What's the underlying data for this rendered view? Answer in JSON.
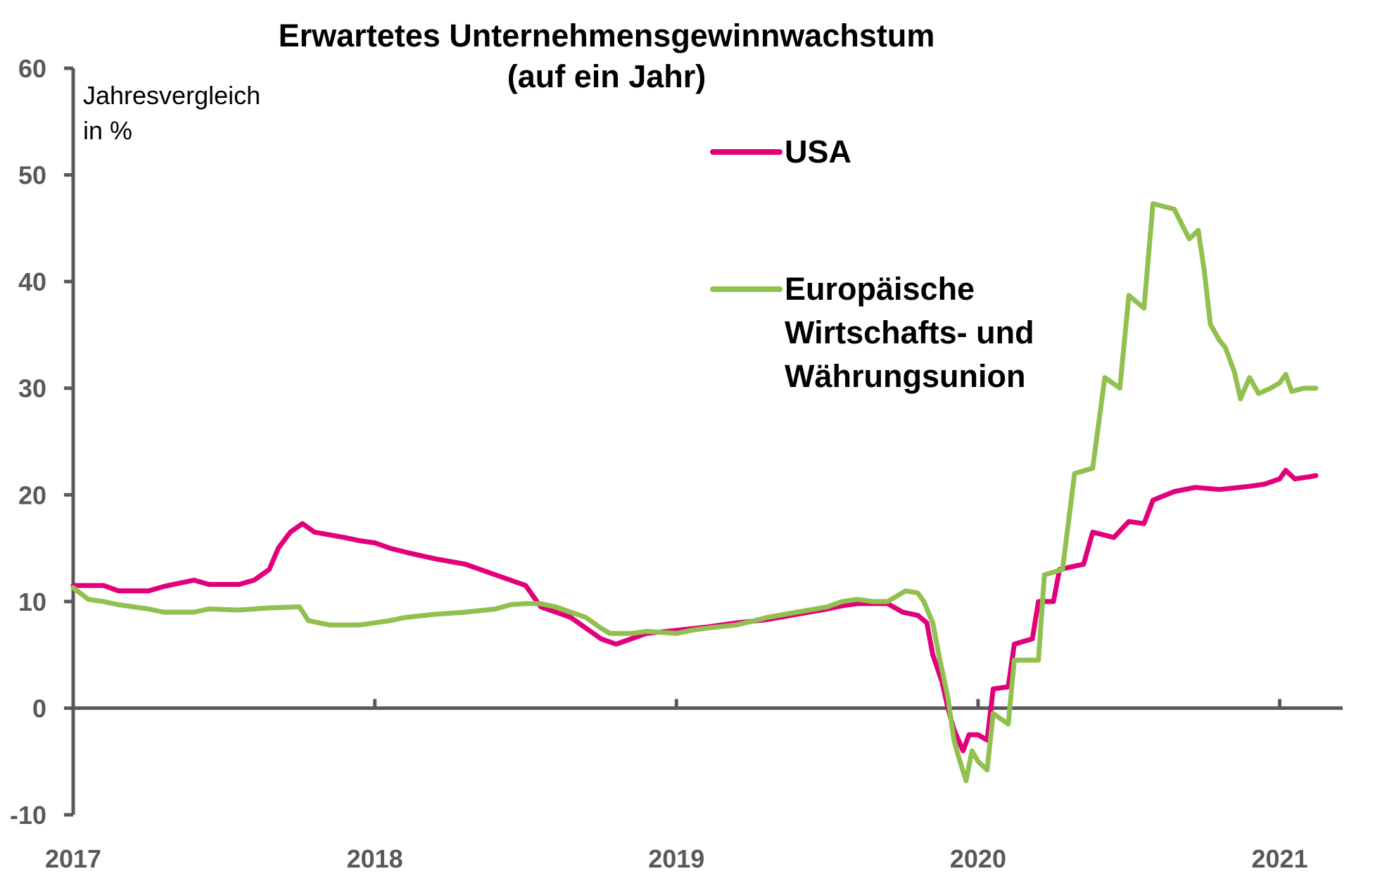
{
  "chart_data": {
    "type": "line",
    "title": [
      "Erwartetes Unternehmensgewinnwachstum",
      "(auf ein Jahr)"
    ],
    "ylabel": [
      "Jahresvergleich",
      "in %"
    ],
    "xlabel": "",
    "ylim": [
      -10,
      60
    ],
    "yticks": [
      60,
      50,
      40,
      30,
      20,
      10,
      0,
      -10
    ],
    "xlim": [
      2017,
      2021.12
    ],
    "xticks": [
      {
        "value": 2017,
        "label": "2017"
      },
      {
        "value": 2018,
        "label": "2018"
      },
      {
        "value": 2019,
        "label": "2019"
      },
      {
        "value": 2020,
        "label": "2020"
      },
      {
        "value": 2021,
        "label": "2021"
      }
    ],
    "grid": false,
    "legend_placement": "top-right",
    "series": [
      {
        "name": "USA",
        "color": "#E2007A",
        "points": [
          [
            2017.0,
            11.5
          ],
          [
            2017.05,
            11.5
          ],
          [
            2017.1,
            11.5
          ],
          [
            2017.15,
            11.0
          ],
          [
            2017.25,
            11.0
          ],
          [
            2017.3,
            11.4
          ],
          [
            2017.4,
            12.0
          ],
          [
            2017.45,
            11.6
          ],
          [
            2017.55,
            11.6
          ],
          [
            2017.6,
            12.0
          ],
          [
            2017.65,
            13.0
          ],
          [
            2017.68,
            15.0
          ],
          [
            2017.72,
            16.5
          ],
          [
            2017.76,
            17.3
          ],
          [
            2017.8,
            16.5
          ],
          [
            2017.9,
            16.0
          ],
          [
            2017.95,
            15.7
          ],
          [
            2018.0,
            15.5
          ],
          [
            2018.05,
            15.0
          ],
          [
            2018.12,
            14.5
          ],
          [
            2018.2,
            14.0
          ],
          [
            2018.3,
            13.5
          ],
          [
            2018.4,
            12.5
          ],
          [
            2018.45,
            12.0
          ],
          [
            2018.5,
            11.5
          ],
          [
            2018.55,
            9.5
          ],
          [
            2018.6,
            9.0
          ],
          [
            2018.65,
            8.5
          ],
          [
            2018.7,
            7.5
          ],
          [
            2018.75,
            6.5
          ],
          [
            2018.8,
            6.0
          ],
          [
            2018.85,
            6.5
          ],
          [
            2018.9,
            7.0
          ],
          [
            2019.0,
            7.3
          ],
          [
            2019.1,
            7.6
          ],
          [
            2019.2,
            8.0
          ],
          [
            2019.3,
            8.3
          ],
          [
            2019.4,
            8.8
          ],
          [
            2019.5,
            9.3
          ],
          [
            2019.55,
            9.6
          ],
          [
            2019.6,
            9.8
          ],
          [
            2019.7,
            9.8
          ],
          [
            2019.75,
            9.0
          ],
          [
            2019.8,
            8.7
          ],
          [
            2019.83,
            8.0
          ],
          [
            2019.85,
            5.0
          ],
          [
            2019.88,
            2.5
          ],
          [
            2019.9,
            0.0
          ],
          [
            2019.92,
            -2.0
          ],
          [
            2019.95,
            -4.0
          ],
          [
            2019.97,
            -2.5
          ],
          [
            2020.0,
            -2.5
          ],
          [
            2020.03,
            -3.0
          ],
          [
            2020.05,
            1.8
          ],
          [
            2020.1,
            2.0
          ],
          [
            2020.12,
            6.0
          ],
          [
            2020.18,
            6.5
          ],
          [
            2020.2,
            10.0
          ],
          [
            2020.25,
            10.0
          ],
          [
            2020.27,
            13.0
          ],
          [
            2020.35,
            13.5
          ],
          [
            2020.38,
            16.5
          ],
          [
            2020.45,
            16.0
          ],
          [
            2020.5,
            17.5
          ],
          [
            2020.55,
            17.3
          ],
          [
            2020.58,
            19.5
          ],
          [
            2020.65,
            20.3
          ],
          [
            2020.72,
            20.7
          ],
          [
            2020.8,
            20.5
          ],
          [
            2020.9,
            20.8
          ],
          [
            2020.95,
            21.0
          ],
          [
            2021.0,
            21.5
          ],
          [
            2021.02,
            22.3
          ],
          [
            2021.05,
            21.5
          ],
          [
            2021.1,
            21.7
          ],
          [
            2021.12,
            21.8
          ]
        ]
      },
      {
        "name": "Europäische Wirtschafts- und Währungsunion",
        "color": "#92C050",
        "points": [
          [
            2017.0,
            11.3
          ],
          [
            2017.05,
            10.2
          ],
          [
            2017.1,
            10.0
          ],
          [
            2017.15,
            9.7
          ],
          [
            2017.25,
            9.3
          ],
          [
            2017.3,
            9.0
          ],
          [
            2017.4,
            9.0
          ],
          [
            2017.45,
            9.3
          ],
          [
            2017.55,
            9.2
          ],
          [
            2017.65,
            9.4
          ],
          [
            2017.75,
            9.5
          ],
          [
            2017.78,
            8.2
          ],
          [
            2017.85,
            7.8
          ],
          [
            2017.95,
            7.8
          ],
          [
            2018.0,
            8.0
          ],
          [
            2018.05,
            8.2
          ],
          [
            2018.1,
            8.5
          ],
          [
            2018.2,
            8.8
          ],
          [
            2018.3,
            9.0
          ],
          [
            2018.4,
            9.3
          ],
          [
            2018.45,
            9.7
          ],
          [
            2018.5,
            9.8
          ],
          [
            2018.55,
            9.8
          ],
          [
            2018.6,
            9.5
          ],
          [
            2018.65,
            9.0
          ],
          [
            2018.7,
            8.5
          ],
          [
            2018.75,
            7.5
          ],
          [
            2018.78,
            7.0
          ],
          [
            2018.85,
            7.0
          ],
          [
            2018.9,
            7.2
          ],
          [
            2019.0,
            7.0
          ],
          [
            2019.05,
            7.3
          ],
          [
            2019.1,
            7.5
          ],
          [
            2019.2,
            7.8
          ],
          [
            2019.3,
            8.5
          ],
          [
            2019.4,
            9.0
          ],
          [
            2019.5,
            9.5
          ],
          [
            2019.55,
            10.0
          ],
          [
            2019.6,
            10.2
          ],
          [
            2019.65,
            10.0
          ],
          [
            2019.7,
            10.0
          ],
          [
            2019.73,
            10.5
          ],
          [
            2019.76,
            11.0
          ],
          [
            2019.8,
            10.8
          ],
          [
            2019.82,
            10.0
          ],
          [
            2019.85,
            8.0
          ],
          [
            2019.87,
            5.0
          ],
          [
            2019.9,
            1.0
          ],
          [
            2019.92,
            -3.0
          ],
          [
            2019.94,
            -5.0
          ],
          [
            2019.96,
            -6.8
          ],
          [
            2019.98,
            -4.0
          ],
          [
            2020.0,
            -5.0
          ],
          [
            2020.03,
            -5.8
          ],
          [
            2020.05,
            -0.5
          ],
          [
            2020.1,
            -1.5
          ],
          [
            2020.12,
            4.5
          ],
          [
            2020.2,
            4.5
          ],
          [
            2020.22,
            12.5
          ],
          [
            2020.28,
            13.0
          ],
          [
            2020.32,
            22.0
          ],
          [
            2020.38,
            22.5
          ],
          [
            2020.42,
            31.0
          ],
          [
            2020.47,
            30.0
          ],
          [
            2020.5,
            38.7
          ],
          [
            2020.55,
            37.5
          ],
          [
            2020.58,
            47.3
          ],
          [
            2020.62,
            47.0
          ],
          [
            2020.65,
            46.8
          ],
          [
            2020.7,
            44.0
          ],
          [
            2020.73,
            44.8
          ],
          [
            2020.75,
            41.0
          ],
          [
            2020.77,
            36.0
          ],
          [
            2020.8,
            34.5
          ],
          [
            2020.82,
            33.8
          ],
          [
            2020.85,
            31.5
          ],
          [
            2020.87,
            29.0
          ],
          [
            2020.9,
            31.0
          ],
          [
            2020.93,
            29.5
          ],
          [
            2020.97,
            30.0
          ],
          [
            2021.0,
            30.5
          ],
          [
            2021.02,
            31.3
          ],
          [
            2021.04,
            29.7
          ],
          [
            2021.08,
            30.0
          ],
          [
            2021.12,
            30.0
          ]
        ]
      }
    ]
  }
}
